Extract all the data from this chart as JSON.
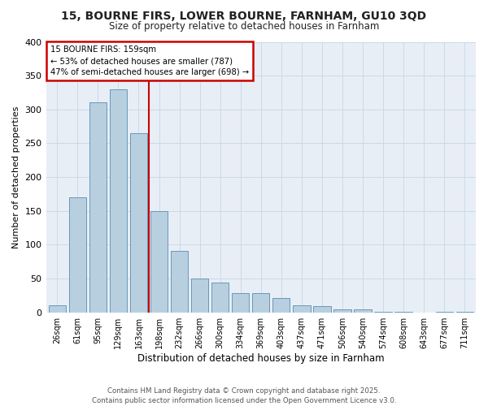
{
  "title": "15, BOURNE FIRS, LOWER BOURNE, FARNHAM, GU10 3QD",
  "subtitle": "Size of property relative to detached houses in Farnham",
  "xlabel": "Distribution of detached houses by size in Farnham",
  "ylabel": "Number of detached properties",
  "footer_line1": "Contains HM Land Registry data © Crown copyright and database right 2025.",
  "footer_line2": "Contains public sector information licensed under the Open Government Licence v3.0.",
  "bar_color": "#b8cfe0",
  "bar_edge_color": "#6699bb",
  "grid_color": "#ccd9e8",
  "background_color": "#ffffff",
  "plot_bg_color": "#e8eef5",
  "annotation_box_color": "#cc0000",
  "annotation_text_line1": "15 BOURNE FIRS: 159sqm",
  "annotation_text_line2": "← 53% of detached houses are smaller (787)",
  "annotation_text_line3": "47% of semi-detached houses are larger (698) →",
  "vline_color": "#cc0000",
  "categories": [
    "26sqm",
    "61sqm",
    "95sqm",
    "129sqm",
    "163sqm",
    "198sqm",
    "232sqm",
    "266sqm",
    "300sqm",
    "334sqm",
    "369sqm",
    "403sqm",
    "437sqm",
    "471sqm",
    "506sqm",
    "540sqm",
    "574sqm",
    "608sqm",
    "643sqm",
    "677sqm",
    "711sqm"
  ],
  "values": [
    11,
    170,
    311,
    330,
    265,
    150,
    91,
    50,
    44,
    29,
    29,
    21,
    11,
    9,
    4,
    4,
    1,
    1,
    0,
    1,
    1
  ],
  "ylim": [
    0,
    400
  ],
  "yticks": [
    0,
    50,
    100,
    150,
    200,
    250,
    300,
    350,
    400
  ],
  "vline_index": 4
}
